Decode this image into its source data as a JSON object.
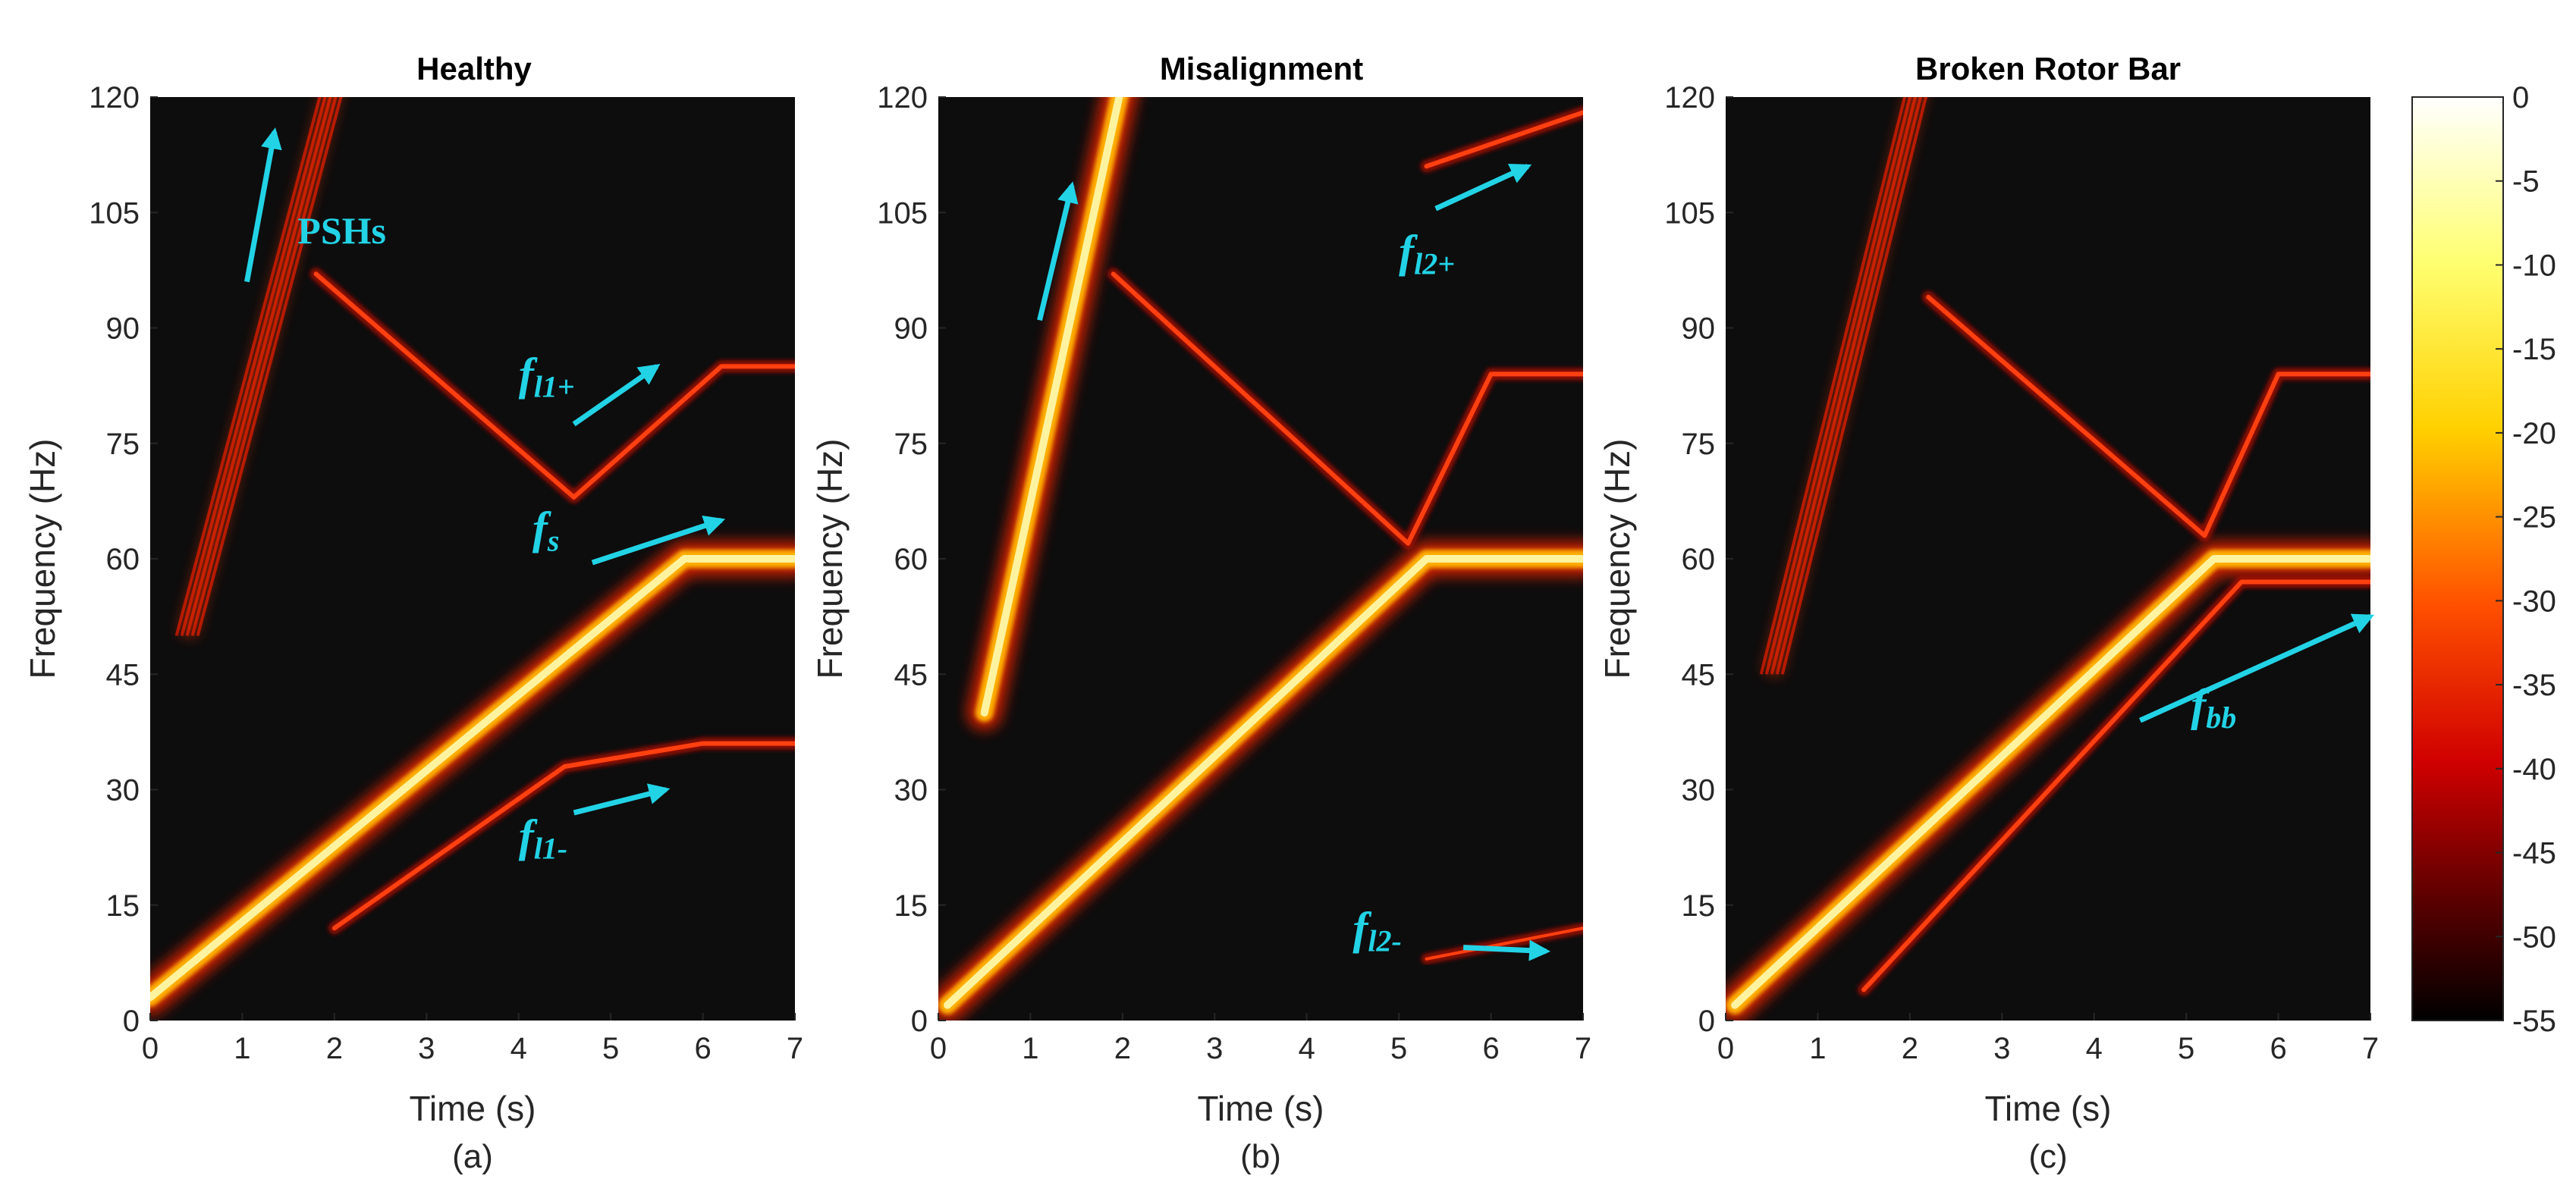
{
  "chart_data": [
    {
      "type": "heatmap",
      "subtype": "spectrogram",
      "panel": "(a)",
      "title": "Healthy",
      "xlabel": "Time (s)",
      "ylabel": "Frequency (Hz)",
      "xlim": [
        0,
        7
      ],
      "ylim": [
        0,
        120
      ],
      "xticks": [
        "0",
        "1",
        "2",
        "3",
        "4",
        "5",
        "6",
        "7"
      ],
      "yticks": [
        "0",
        "15",
        "30",
        "45",
        "60",
        "75",
        "90",
        "105",
        "120"
      ],
      "traces": [
        {
          "name": "fs",
          "points": [
            [
              0,
              3
            ],
            [
              5.8,
              60
            ],
            [
              7,
              60
            ]
          ],
          "intensity": "strong"
        },
        {
          "name": "PSHs",
          "points": [
            [
              0.4,
              50
            ],
            [
              2.0,
              122
            ]
          ],
          "intensity": "medium",
          "band": true
        },
        {
          "name": "fl1+",
          "points": [
            [
              1.8,
              97
            ],
            [
              4.6,
              68
            ],
            [
              6.2,
              85
            ],
            [
              7,
              85
            ]
          ],
          "intensity": "medium"
        },
        {
          "name": "fl1-",
          "points": [
            [
              2.0,
              12
            ],
            [
              4.5,
              33
            ],
            [
              6,
              36
            ],
            [
              7,
              36
            ]
          ],
          "intensity": "medium"
        }
      ],
      "annotations": [
        {
          "label": "PSHs",
          "text": "PSHs"
        },
        {
          "label": "fl1+",
          "main": "f",
          "sub": "l1+"
        },
        {
          "label": "fs",
          "main": "f",
          "sub": "s"
        },
        {
          "label": "fl1-",
          "main": "f",
          "sub": "l1-"
        }
      ]
    },
    {
      "type": "heatmap",
      "subtype": "spectrogram",
      "panel": "(b)",
      "title": "Misalignment",
      "xlabel": "Time (s)",
      "ylabel": "Frequency (Hz)",
      "xlim": [
        0,
        7
      ],
      "ylim": [
        0,
        120
      ],
      "xticks": [
        "0",
        "1",
        "2",
        "3",
        "4",
        "5",
        "6",
        "7"
      ],
      "yticks": [
        "0",
        "15",
        "30",
        "45",
        "60",
        "75",
        "90",
        "105",
        "120"
      ],
      "traces": [
        {
          "name": "fs",
          "points": [
            [
              0.1,
              2
            ],
            [
              5.3,
              60
            ],
            [
              7,
              60
            ]
          ],
          "intensity": "strong"
        },
        {
          "name": "PSHs",
          "points": [
            [
              0.5,
              40
            ],
            [
              2.0,
              122
            ]
          ],
          "intensity": "strong",
          "band": true
        },
        {
          "name": "fl1+",
          "points": [
            [
              1.9,
              97
            ],
            [
              5.1,
              62
            ],
            [
              6,
              84
            ],
            [
              7,
              84
            ]
          ],
          "intensity": "medium"
        },
        {
          "name": "fl2+",
          "points": [
            [
              5.3,
              111
            ],
            [
              7,
              118
            ]
          ],
          "intensity": "medium"
        },
        {
          "name": "fl2-",
          "points": [
            [
              5.3,
              8
            ],
            [
              7,
              12
            ]
          ],
          "intensity": "weak"
        }
      ],
      "annotations": [
        {
          "label": "fl2+",
          "main": "f",
          "sub": "l2+"
        },
        {
          "label": "fl2-",
          "main": "f",
          "sub": "l2-"
        }
      ]
    },
    {
      "type": "heatmap",
      "subtype": "spectrogram",
      "panel": "(c)",
      "title": "Broken Rotor Bar",
      "xlabel": "Time (s)",
      "ylabel": "Frequency (Hz)",
      "xlim": [
        0,
        7
      ],
      "ylim": [
        0,
        120
      ],
      "xticks": [
        "0",
        "1",
        "2",
        "3",
        "4",
        "5",
        "6",
        "7"
      ],
      "yticks": [
        "0",
        "15",
        "30",
        "45",
        "60",
        "75",
        "90",
        "105",
        "120"
      ],
      "traces": [
        {
          "name": "fs",
          "points": [
            [
              0.1,
              2
            ],
            [
              5.3,
              60
            ],
            [
              7,
              60
            ]
          ],
          "intensity": "strong"
        },
        {
          "name": "PSHs",
          "points": [
            [
              0.5,
              45
            ],
            [
              2.1,
              122
            ]
          ],
          "intensity": "medium",
          "band": true
        },
        {
          "name": "fl1+",
          "points": [
            [
              2.2,
              94
            ],
            [
              5.2,
              63
            ],
            [
              6,
              84
            ],
            [
              7,
              84
            ]
          ],
          "intensity": "medium"
        },
        {
          "name": "fbb",
          "points": [
            [
              1.5,
              4
            ],
            [
              5.6,
              57
            ],
            [
              7,
              57
            ]
          ],
          "intensity": "medium"
        }
      ],
      "annotations": [
        {
          "label": "fbb",
          "main": "f",
          "sub": "bb"
        }
      ]
    }
  ],
  "colorbar": {
    "ticks": [
      "0",
      "-5",
      "-10",
      "-15",
      "-20",
      "-25",
      "-30",
      "-35",
      "-40",
      "-45",
      "-50",
      "-55"
    ],
    "range": [
      -55,
      0
    ],
    "colormap": "hot"
  },
  "colors": {
    "background": "#0d0d0d",
    "annotation": "#22d3e6",
    "trace_core": "#fff3a0",
    "trace_mid": "#ffb000",
    "trace_edge": "#e02000"
  }
}
